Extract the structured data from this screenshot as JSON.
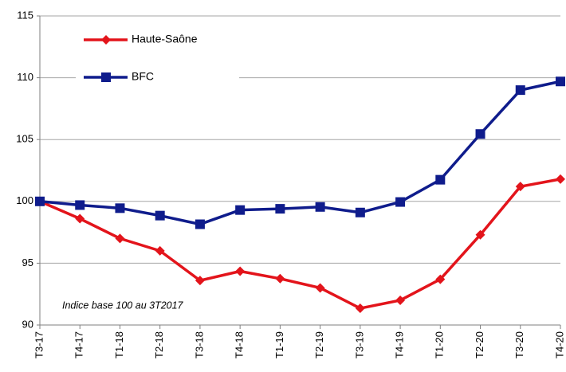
{
  "chart_data": {
    "type": "line",
    "annotation": "Indice base 100 au 3T2017",
    "categories": [
      "T3-17",
      "T4-17",
      "T1-18",
      "T2-18",
      "T3-18",
      "T4-18",
      "T1-19",
      "T2-19",
      "T3-19",
      "T4-19",
      "T1-20",
      "T2-20",
      "T3-20",
      "T4-20"
    ],
    "series": [
      {
        "name": "Haute-Saône",
        "color": "#e3141b",
        "marker": "diamond",
        "values": [
          100,
          98.6,
          97.0,
          96.0,
          93.6,
          94.35,
          93.75,
          93.0,
          91.35,
          92.0,
          93.7,
          97.3,
          101.2,
          101.8
        ]
      },
      {
        "name": "BFC",
        "color": "#0f1c8c",
        "marker": "square",
        "values": [
          100,
          99.7,
          99.45,
          98.85,
          98.15,
          99.3,
          99.4,
          99.55,
          99.1,
          99.95,
          101.75,
          105.45,
          109.0,
          109.7
        ]
      }
    ],
    "ylim": [
      90,
      115
    ],
    "yticks": [
      90,
      95,
      100,
      105,
      110,
      115
    ],
    "grid": true,
    "legend": "upper left"
  }
}
